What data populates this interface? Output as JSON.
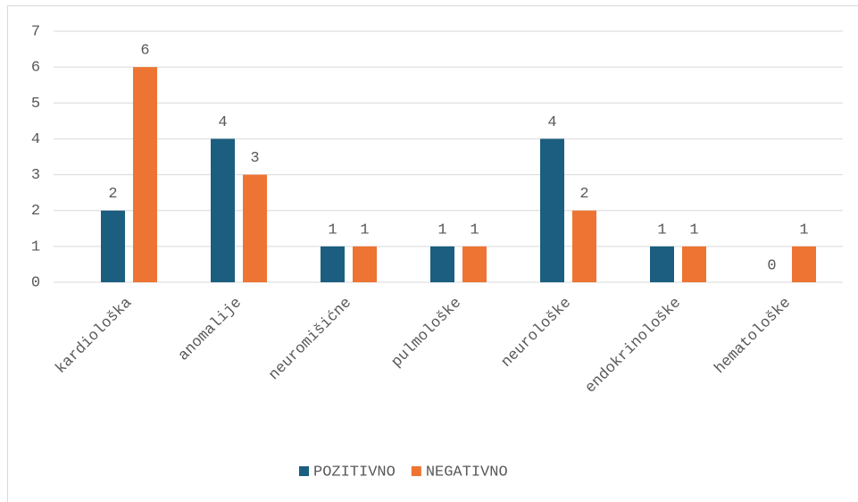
{
  "chart_data": {
    "type": "bar",
    "categories": [
      "kardiološka",
      "anomalije",
      "neuromišićne",
      "pulmološke",
      "neurološke",
      "endokrinološke",
      "hematološke"
    ],
    "series": [
      {
        "name": "POZITIVNO",
        "color": "#1b5e7f",
        "values": [
          2,
          4,
          1,
          1,
          4,
          1,
          0
        ]
      },
      {
        "name": "NEGATIVNO",
        "color": "#ee7433",
        "values": [
          6,
          3,
          1,
          1,
          2,
          1,
          1
        ]
      }
    ],
    "ylim": [
      0,
      7
    ],
    "yticks": [
      0,
      1,
      2,
      3,
      4,
      5,
      6,
      7
    ],
    "grid": true,
    "legend": "bottom"
  }
}
